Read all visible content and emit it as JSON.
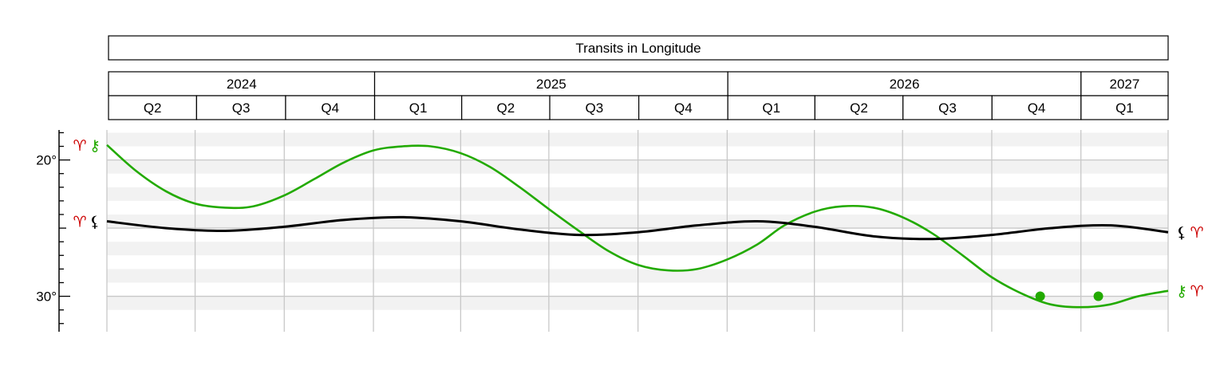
{
  "chart_data": {
    "type": "line",
    "title": "Transits in Longitude",
    "x_range": [
      "2024-04-01",
      "2027-04-01"
    ],
    "years": [
      {
        "label": "2024",
        "start": "2024-04-01",
        "end": "2025-01-01"
      },
      {
        "label": "2025",
        "start": "2025-01-01",
        "end": "2026-01-01"
      },
      {
        "label": "2026",
        "start": "2026-01-01",
        "end": "2027-01-01"
      },
      {
        "label": "2027",
        "start": "2027-01-01",
        "end": "2027-04-01"
      }
    ],
    "quarters": [
      {
        "label": "Q2",
        "start": "2024-04-01",
        "end": "2024-07-01"
      },
      {
        "label": "Q3",
        "start": "2024-07-01",
        "end": "2024-10-01"
      },
      {
        "label": "Q4",
        "start": "2024-10-01",
        "end": "2025-01-01"
      },
      {
        "label": "Q1",
        "start": "2025-01-01",
        "end": "2025-04-01"
      },
      {
        "label": "Q2",
        "start": "2025-04-01",
        "end": "2025-07-01"
      },
      {
        "label": "Q3",
        "start": "2025-07-01",
        "end": "2025-10-01"
      },
      {
        "label": "Q4",
        "start": "2025-10-01",
        "end": "2026-01-01"
      },
      {
        "label": "Q1",
        "start": "2026-01-01",
        "end": "2026-04-01"
      },
      {
        "label": "Q2",
        "start": "2026-04-01",
        "end": "2026-07-01"
      },
      {
        "label": "Q3",
        "start": "2026-07-01",
        "end": "2026-10-01"
      },
      {
        "label": "Q4",
        "start": "2026-10-01",
        "end": "2027-01-01"
      },
      {
        "label": "Q1",
        "start": "2027-01-01",
        "end": "2027-04-01"
      }
    ],
    "y_axis": {
      "range": [
        17.8,
        32.6
      ],
      "inverted": true,
      "major_ticks": [
        {
          "value": 20,
          "label": "20°"
        },
        {
          "value": 30,
          "label": "30°"
        }
      ],
      "minor_step": 1,
      "grid_step": 5,
      "band_step": 1
    },
    "colors": {
      "chiron": "#22aa00",
      "lilith": "#000000",
      "aries": "#cc0000",
      "grid": "#c8c8c8",
      "band": "#f2f2f2"
    },
    "series": [
      {
        "key": "chiron",
        "glyph": "⚷",
        "sign_glyph": "♈",
        "color": "#22aa00",
        "points": [
          [
            "2024-04-01",
            18.9
          ],
          [
            "2024-05-01",
            20.8
          ],
          [
            "2024-06-01",
            22.3
          ],
          [
            "2024-07-01",
            23.2
          ],
          [
            "2024-08-01",
            23.5
          ],
          [
            "2024-08-30",
            23.4
          ],
          [
            "2024-10-01",
            22.6
          ],
          [
            "2024-11-01",
            21.4
          ],
          [
            "2024-12-01",
            20.2
          ],
          [
            "2025-01-01",
            19.3
          ],
          [
            "2025-01-31",
            19.0
          ],
          [
            "2025-03-01",
            19.0
          ],
          [
            "2025-04-01",
            19.5
          ],
          [
            "2025-05-01",
            20.5
          ],
          [
            "2025-06-01",
            22.0
          ],
          [
            "2025-07-01",
            23.6
          ],
          [
            "2025-08-01",
            25.2
          ],
          [
            "2025-09-01",
            26.7
          ],
          [
            "2025-10-01",
            27.7
          ],
          [
            "2025-11-01",
            28.1
          ],
          [
            "2025-12-01",
            28.0
          ],
          [
            "2026-01-01",
            27.3
          ],
          [
            "2026-02-01",
            26.2
          ],
          [
            "2026-03-01",
            24.8
          ],
          [
            "2026-04-01",
            23.8
          ],
          [
            "2026-04-30",
            23.4
          ],
          [
            "2026-06-01",
            23.5
          ],
          [
            "2026-07-01",
            24.2
          ],
          [
            "2026-08-01",
            25.4
          ],
          [
            "2026-09-01",
            27.0
          ],
          [
            "2026-10-01",
            28.6
          ],
          [
            "2026-11-01",
            29.8
          ],
          [
            "2026-12-01",
            30.6
          ],
          [
            "2027-01-01",
            30.8
          ],
          [
            "2027-01-31",
            30.6
          ],
          [
            "2027-03-01",
            30.0
          ],
          [
            "2027-04-01",
            29.6
          ]
        ],
        "markers": [
          [
            "2026-11-20",
            30.0
          ],
          [
            "2027-01-19",
            30.0
          ]
        ]
      },
      {
        "key": "lilith",
        "glyph": "⚸",
        "sign_glyph": "♈",
        "color": "#000000",
        "points": [
          [
            "2024-04-01",
            24.5
          ],
          [
            "2024-06-01",
            25.0
          ],
          [
            "2024-08-01",
            25.2
          ],
          [
            "2024-10-01",
            24.9
          ],
          [
            "2024-12-01",
            24.4
          ],
          [
            "2025-02-01",
            24.2
          ],
          [
            "2025-04-01",
            24.5
          ],
          [
            "2025-06-01",
            25.1
          ],
          [
            "2025-08-01",
            25.5
          ],
          [
            "2025-10-01",
            25.3
          ],
          [
            "2025-12-01",
            24.8
          ],
          [
            "2026-02-01",
            24.5
          ],
          [
            "2026-04-01",
            24.9
          ],
          [
            "2026-06-01",
            25.6
          ],
          [
            "2026-08-01",
            25.8
          ],
          [
            "2026-10-01",
            25.5
          ],
          [
            "2026-12-01",
            25.0
          ],
          [
            "2027-02-01",
            24.8
          ],
          [
            "2027-04-01",
            25.3
          ]
        ],
        "markers": []
      }
    ]
  }
}
